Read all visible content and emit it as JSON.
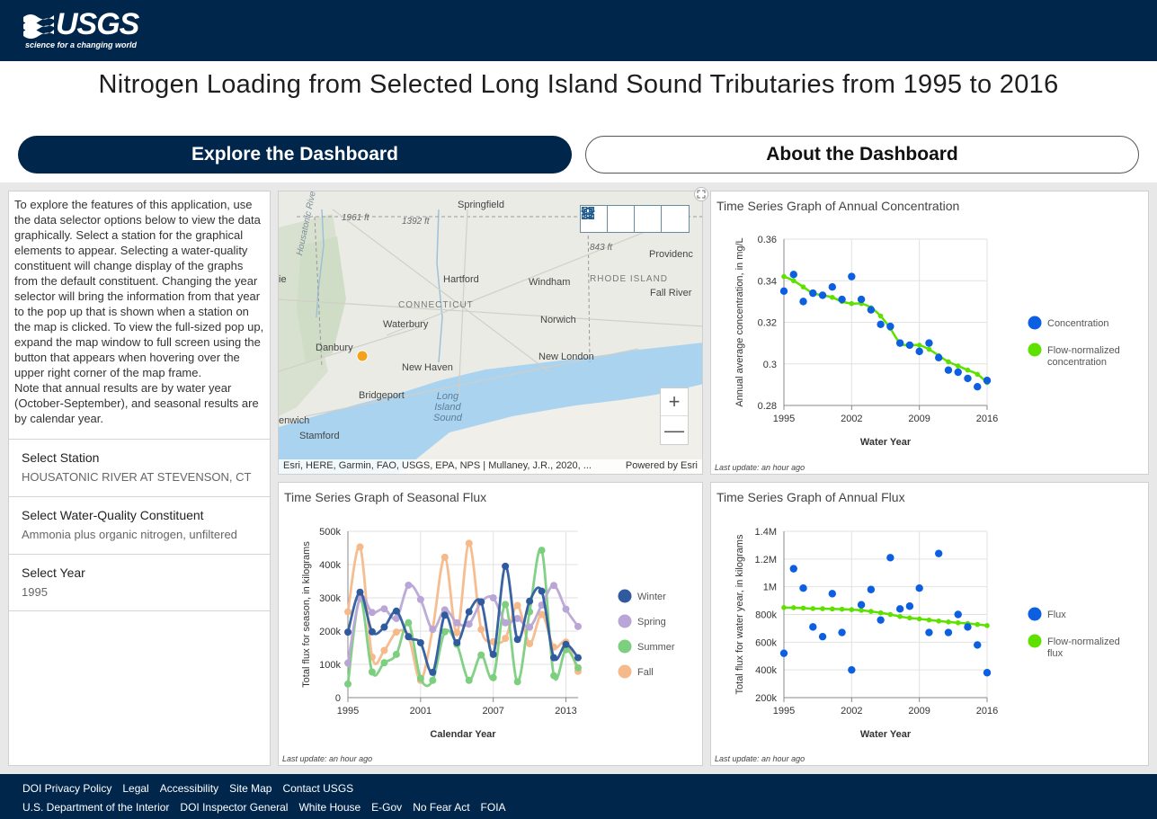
{
  "header": {
    "logo_text": "USGS",
    "logo_tagline": "science for a changing world"
  },
  "title": "Nitrogen Loading from Selected Long Island Sound Tributaries from 1995 to 2016",
  "nav": {
    "explore_label": "Explore the Dashboard",
    "about_label": "About the Dashboard"
  },
  "left_panel": {
    "intro": "To explore the features of this application, use the data selector options below to view the data graphically.  Select a station for the graphical elements to appear. Selecting a water-quality constituent will change display of the graphs from the default constituent. Changing the year selector will bring the information from that year to the pop up that is shown when a station on the map is clicked. To view the full-sized pop up, expand the map window to full screen using the button that appears when hovering over the upper right corner of the map frame.",
    "note": "Note that annual results are by water year (October-September), and seasonal results are by calendar year.",
    "station_label": "Select Station",
    "station_value": "HOUSATONIC RIVER AT STEVENSON, CT",
    "constituent_label": "Select Water-Quality Constituent",
    "constituent_value": "Ammonia plus organic nitrogen, unfiltered",
    "year_label": "Select Year",
    "year_value": "1995"
  },
  "map": {
    "labels": {
      "springfield": "Springfield",
      "hartford": "Hartford",
      "windham": "Windham",
      "providence": "Providenc",
      "fall_river": "Fall River",
      "connecticut": "CONNECTICUT",
      "rhode_island": "RHODE ISLAND",
      "waterbury": "Waterbury",
      "norwich": "Norwich",
      "danbury": "Danbury",
      "new_haven": "New Haven",
      "new_london": "New London",
      "bridgeport": "Bridgeport",
      "stamford": "Stamford",
      "nwich": "enwich",
      "ie": "ie",
      "long_island_sound": "Long\nIsland\nSound",
      "housatonic_river": "Housatonic River",
      "elev1": "1961 ft",
      "elev2": "1392 ft",
      "elev3": "843 ft"
    },
    "attribution": "Esri, HERE, Garmin, FAO, USGS, EPA, NPS | Mullaney, J.R., 2020, ...",
    "powered_by": "Powered by Esri",
    "zoom_in": "+",
    "zoom_out": "—"
  },
  "charts": {
    "annual_concentration": {
      "title": "Time Series Graph of Annual Concentration",
      "last_update": "Last update: an hour ago"
    },
    "seasonal_flux": {
      "title": "Time Series Graph of Seasonal Flux",
      "last_update": "Last update: an hour ago"
    },
    "annual_flux": {
      "title": "Time Series Graph of Annual Flux",
      "last_update": "Last update: an hour ago"
    }
  },
  "colors": {
    "navy": "#00264c",
    "concentration": "#0b5fe0",
    "flow_normalized": "#5ee000",
    "winter": "#2f5b9e",
    "spring": "#b9a6d6",
    "summer": "#7ccf7f",
    "fall": "#f5b98a"
  },
  "chart_data": [
    {
      "type": "scatter",
      "title": "Time Series Graph of Annual Concentration",
      "xlabel": "Water Year",
      "ylabel": "Annual average concentration, in mg/L",
      "xlim": [
        1995,
        2016
      ],
      "ylim": [
        0.28,
        0.36
      ],
      "xticks": [
        "1995",
        "2002",
        "2009",
        "2016"
      ],
      "yticks": [
        "0.28",
        "0.3",
        "0.32",
        "0.34",
        "0.36"
      ],
      "legend_position": "right",
      "series": [
        {
          "name": "Concentration",
          "kind": "scatter",
          "x": [
            1995,
            1996,
            1997,
            1998,
            1999,
            2000,
            2001,
            2002,
            2003,
            2004,
            2005,
            2006,
            2007,
            2008,
            2009,
            2010,
            2011,
            2012,
            2013,
            2014,
            2015,
            2016
          ],
          "y": [
            0.335,
            0.343,
            0.33,
            0.334,
            0.333,
            0.337,
            0.331,
            0.342,
            0.331,
            0.326,
            0.319,
            0.318,
            0.31,
            0.309,
            0.306,
            0.31,
            0.303,
            0.297,
            0.296,
            0.293,
            0.289,
            0.292
          ]
        },
        {
          "name": "Flow-normalized concentration",
          "kind": "line",
          "x": [
            1995,
            1996,
            1997,
            1998,
            1999,
            2000,
            2001,
            2002,
            2003,
            2004,
            2005,
            2006,
            2007,
            2008,
            2009,
            2010,
            2011,
            2012,
            2013,
            2014,
            2015,
            2016
          ],
          "y": [
            0.342,
            0.34,
            0.337,
            0.334,
            0.333,
            0.332,
            0.33,
            0.329,
            0.329,
            0.327,
            0.323,
            0.317,
            0.31,
            0.309,
            0.309,
            0.307,
            0.304,
            0.301,
            0.299,
            0.297,
            0.295,
            0.291
          ]
        }
      ]
    },
    {
      "type": "line",
      "title": "Time Series Graph of Seasonal Flux",
      "xlabel": "Calendar Year",
      "ylabel": "Total flux for season, in kilograms",
      "xlim": [
        1995,
        2014
      ],
      "ylim": [
        0,
        500000
      ],
      "xticks": [
        "1995",
        "2001",
        "2007",
        "2013"
      ],
      "yticks": [
        "0",
        "100k",
        "200k",
        "300k",
        "400k",
        "500k"
      ],
      "legend_position": "right",
      "x": [
        1995,
        1996,
        1997,
        1998,
        1999,
        2000,
        2001,
        2002,
        2003,
        2004,
        2005,
        2006,
        2007,
        2008,
        2009,
        2010,
        2011,
        2012,
        2013,
        2014
      ],
      "series": [
        {
          "name": "Winter",
          "values": [
            197000,
            317000,
            198000,
            212000,
            260000,
            183000,
            165000,
            76000,
            248000,
            165000,
            258000,
            288000,
            130000,
            395000,
            175000,
            290000,
            320000,
            120000,
            160000,
            120000
          ]
        },
        {
          "name": "Spring",
          "values": [
            104000,
            300000,
            256000,
            267000,
            238000,
            338000,
            295000,
            205000,
            264000,
            225000,
            221000,
            287000,
            300000,
            225000,
            238000,
            212000,
            278000,
            337000,
            266000,
            214000
          ]
        },
        {
          "name": "Summer",
          "values": [
            41000,
            298000,
            77000,
            105000,
            130000,
            225000,
            58000,
            52000,
            198000,
            160000,
            52000,
            128000,
            60000,
            280000,
            48000,
            258000,
            443000,
            66000,
            144000,
            90000
          ]
        },
        {
          "name": "Fall",
          "values": [
            258000,
            453000,
            122000,
            142000,
            197000,
            185000,
            52000,
            207000,
            422000,
            195000,
            464000,
            205000,
            168000,
            178000,
            277000,
            162000,
            250000,
            152000,
            167000,
            79000
          ]
        }
      ]
    },
    {
      "type": "scatter",
      "title": "Time Series Graph of Annual Flux",
      "xlabel": "Water Year",
      "ylabel": "Total flux for water year, in kilograms",
      "xlim": [
        1995,
        2016
      ],
      "ylim": [
        200000,
        1400000
      ],
      "xticks": [
        "1995",
        "2002",
        "2009",
        "2016"
      ],
      "yticks": [
        "200k",
        "400k",
        "600k",
        "800k",
        "1M",
        "1.2M",
        "1.4M"
      ],
      "legend_position": "right",
      "series": [
        {
          "name": "Flux",
          "kind": "scatter",
          "x": [
            1995,
            1996,
            1997,
            1998,
            1999,
            2000,
            2001,
            2002,
            2003,
            2004,
            2005,
            2006,
            2007,
            2008,
            2009,
            2010,
            2011,
            2012,
            2013,
            2014,
            2015,
            2016
          ],
          "y": [
            520000,
            1130000,
            990000,
            710000,
            640000,
            950000,
            670000,
            400000,
            870000,
            980000,
            760000,
            1210000,
            840000,
            860000,
            990000,
            670000,
            1240000,
            670000,
            800000,
            710000,
            580000,
            380000
          ]
        },
        {
          "name": "Flow-normalized flux",
          "kind": "line",
          "x": [
            1995,
            1996,
            1997,
            1998,
            1999,
            2000,
            2001,
            2002,
            2003,
            2004,
            2005,
            2006,
            2007,
            2008,
            2009,
            2010,
            2011,
            2012,
            2013,
            2014,
            2015,
            2016
          ],
          "y": [
            850000,
            849000,
            846000,
            843000,
            842000,
            840000,
            838000,
            835000,
            830000,
            822000,
            812000,
            800000,
            785000,
            775000,
            768000,
            760000,
            753000,
            746000,
            740000,
            735000,
            728000,
            720000
          ]
        }
      ]
    }
  ],
  "footer": {
    "row1": [
      "DOI Privacy Policy",
      "Legal",
      "Accessibility",
      "Site Map",
      "Contact USGS"
    ],
    "row2": [
      "U.S. Department of the Interior",
      "DOI Inspector General",
      "White House",
      "E-Gov",
      "No Fear Act",
      "FOIA"
    ]
  }
}
